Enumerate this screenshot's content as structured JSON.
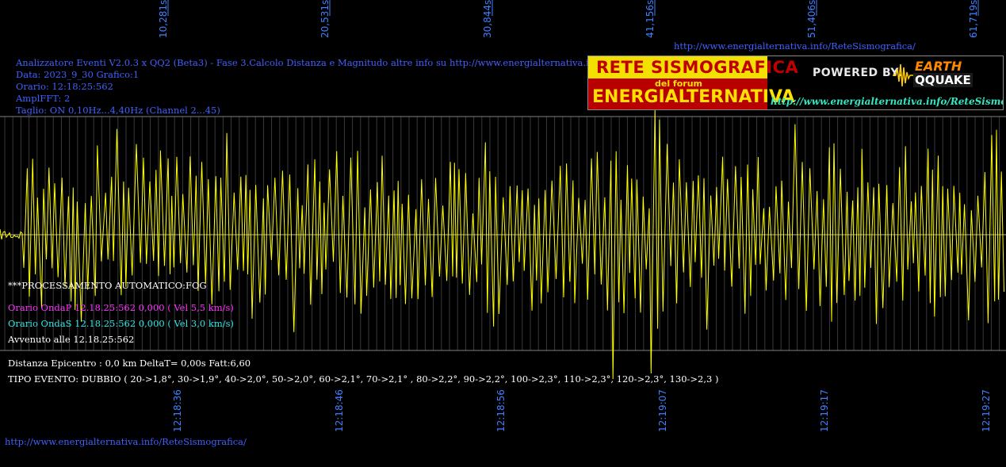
{
  "header": {
    "title": "Analizzatore Eventi V2.0.3 x QQ2 (Beta3) - Fase 3.Calcolo Distanza e Magnitudo altre info su http://www.energialternativa.info/ReteSism",
    "data": "Data: 2023_9_30 Grafico:1",
    "orario": "Orario: 12:18:25:562",
    "ampl": "AmplFFT: 2",
    "taglio": "Taglio: ON 0,10Hz...4,40Hz      (Channel 2...45)"
  },
  "top_url": "http://www.energialternativa.info/ReteSismografica/",
  "bottom_url": "http://www.energialternativa.info/ReteSismografica/",
  "logo": {
    "line1": "RETE SISMOGRAFICA",
    "line2": "del forum",
    "line3": "ENERGIALTERNATIVA",
    "powered": "POWERED BY:",
    "brand1": "EARTH",
    "brand2": "QQUAKE",
    "url": "http://www.energialternativa.info/ReteSismografica"
  },
  "processing": {
    "auto": "***PROCESSAMENTO AUTOMATICO:FOG",
    "onda_p": "Orario OndaP 12.18.25:562  0,000 ( Vel 5,5 km/s)",
    "onda_s": "Orario OndaS 12.18.25:562  0,000 ( Vel 3,0 km/s)",
    "avvenuto": "Avvenuto alle 12.18.25:562",
    "distanza": "Distanza Epicentro : 0,0 km DeltaT= 0,00s  Fatt:6,60",
    "tipo": "TIPO EVENTO: DUBBIO ( 20->1,8°, 30->1,9°, 40->2,0°, 50->2,0°, 60->2,1°, 70->2,1° , 80->2,2°, 90->2,2°, 100->2,3°, 110->2,3°, 120->2,3°, 130->2,3 )"
  },
  "colors": {
    "background": "#000000",
    "trace": "#ffff00",
    "grid": "#606060",
    "axis_labels": "#4080ff"
  },
  "chart_data": {
    "type": "line",
    "top_ticks": [
      "10,281s",
      "20,531s",
      "30,844s",
      "41,156s",
      "51,406s",
      "61,719s"
    ],
    "bottom_ticks": [
      "12:18:36",
      "12:18:46",
      "12:18:56",
      "12:19:07",
      "12:19:17",
      "12:19:27"
    ],
    "grid": true,
    "x_range_s": [
      0,
      63
    ],
    "y_range": [
      -1,
      1
    ],
    "trace_seed": 7
  }
}
